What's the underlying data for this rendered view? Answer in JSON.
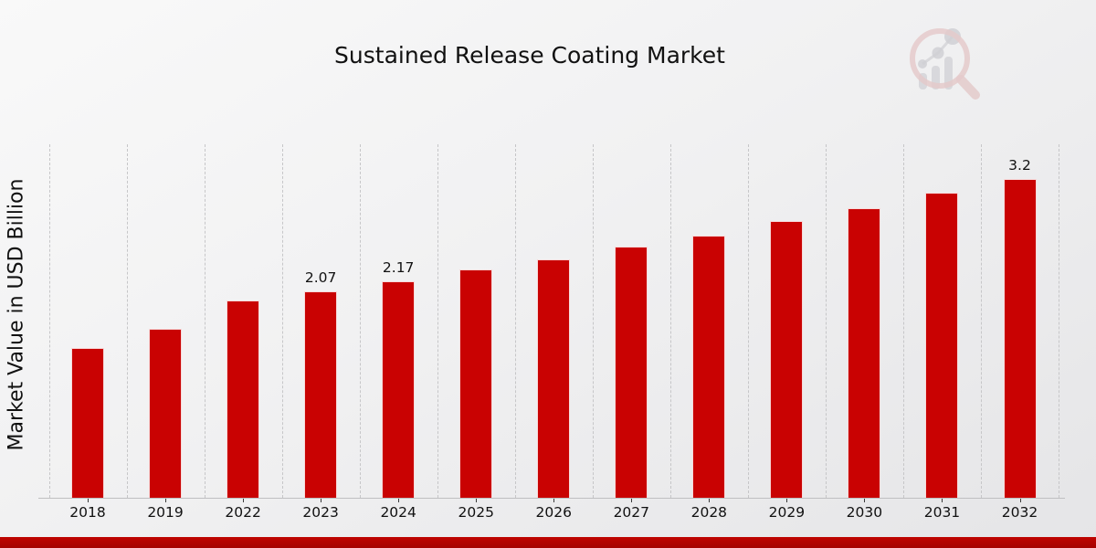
{
  "title": "Sustained Release Coating Market",
  "ylabel": "Market Value in USD Billion",
  "colors": {
    "bar": "#c90202",
    "bar_edge": "#ffffff",
    "gridline": "#c6c6c8",
    "axis_line": "#bfbfc1",
    "tick": "#3a3a3a",
    "text": "#111111",
    "bottom_strip": "#b00300",
    "background_start": "#f9f9f9",
    "background_end": "#e5e5e7",
    "watermark_ring": "#d9a6a6",
    "watermark_bars": "#b2b2b8"
  },
  "watermark": {
    "name": "magnifier-bar-chart-logo"
  },
  "chart_data": {
    "type": "bar",
    "title": "Sustained Release Coating Market",
    "xlabel": "",
    "ylabel": "Market Value in USD Billion",
    "categories": [
      "2018",
      "2019",
      "2022",
      "2023",
      "2024",
      "2025",
      "2026",
      "2027",
      "2028",
      "2029",
      "2030",
      "2031",
      "2032"
    ],
    "values": [
      1.5,
      1.7,
      1.98,
      2.07,
      2.17,
      2.29,
      2.39,
      2.52,
      2.63,
      2.78,
      2.91,
      3.06,
      3.2
    ],
    "series": [
      {
        "name": "Market Value in USD Billion",
        "values": [
          1.5,
          1.7,
          1.98,
          2.07,
          2.17,
          2.29,
          2.39,
          2.52,
          2.63,
          2.78,
          2.91,
          3.06,
          3.2
        ]
      }
    ],
    "data_labels": {
      "2023": "2.07",
      "2024": "2.17",
      "2032": "3.2"
    },
    "ylim": [
      0,
      3.57
    ],
    "grid": "vertical-dashed",
    "legend": "none",
    "bar_color": "#c90202"
  }
}
